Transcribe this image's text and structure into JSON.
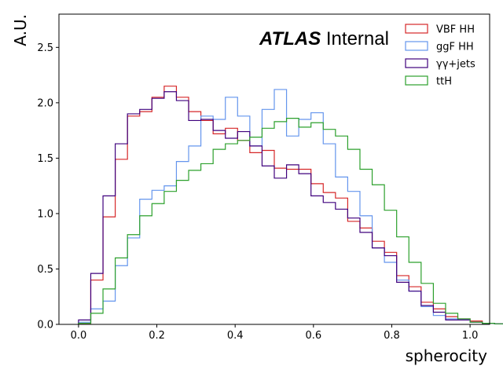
{
  "chart_data": {
    "type": "histogram",
    "xlabel": "spherocity",
    "ylabel": "A.U.",
    "xlim": [
      -0.05,
      1.05
    ],
    "ylim": [
      0,
      2.8
    ],
    "xticks": [
      "0.0",
      "0.2",
      "0.4",
      "0.6",
      "0.8",
      "1.0"
    ],
    "yticks": [
      "0.0",
      "0.5",
      "1.0",
      "1.5",
      "2.0",
      "2.5"
    ],
    "bin_edges_start": 0.0,
    "bin_width": 0.03125,
    "legend_position": "top-right",
    "grid": false,
    "annotation": {
      "bold": "ATLAS",
      "rest": " Internal"
    },
    "series": [
      {
        "name": "VBF HH",
        "color": "#d62728",
        "values": [
          0.01,
          0.4,
          0.97,
          1.49,
          1.88,
          1.92,
          2.05,
          2.15,
          2.05,
          1.92,
          1.84,
          1.72,
          1.77,
          1.66,
          1.55,
          1.57,
          1.41,
          1.4,
          1.4,
          1.27,
          1.19,
          1.14,
          0.93,
          0.87,
          0.75,
          0.65,
          0.44,
          0.34,
          0.2,
          0.14,
          0.07,
          0.05,
          0.03,
          0.01,
          0.005,
          0.0
        ]
      },
      {
        "name": "ggF HH",
        "color": "#6495ed",
        "values": [
          0.02,
          0.14,
          0.21,
          0.53,
          0.78,
          1.13,
          1.21,
          1.25,
          1.47,
          1.61,
          1.88,
          1.85,
          2.05,
          1.88,
          1.61,
          1.94,
          2.12,
          1.7,
          1.85,
          1.91,
          1.63,
          1.33,
          1.2,
          0.98,
          0.69,
          0.56,
          0.4,
          0.3,
          0.16,
          0.08,
          0.05,
          0.04,
          0.02,
          0.01,
          0.005,
          0.0
        ]
      },
      {
        "name": "γγ+jets",
        "color": "#3f007d",
        "values": [
          0.04,
          0.46,
          1.16,
          1.63,
          1.9,
          1.94,
          2.04,
          2.1,
          2.02,
          1.84,
          1.85,
          1.75,
          1.68,
          1.74,
          1.61,
          1.43,
          1.32,
          1.44,
          1.36,
          1.16,
          1.1,
          1.04,
          0.96,
          0.83,
          0.69,
          0.62,
          0.38,
          0.3,
          0.17,
          0.11,
          0.04,
          0.04,
          0.02,
          0.01,
          0.005,
          0.0
        ]
      },
      {
        "name": "ttH",
        "color": "#2ca02c",
        "values": [
          0.01,
          0.1,
          0.32,
          0.6,
          0.81,
          0.98,
          1.09,
          1.2,
          1.3,
          1.39,
          1.45,
          1.58,
          1.63,
          1.66,
          1.69,
          1.77,
          1.83,
          1.86,
          1.78,
          1.82,
          1.76,
          1.7,
          1.58,
          1.4,
          1.26,
          1.03,
          0.79,
          0.56,
          0.37,
          0.19,
          0.1,
          0.05,
          0.02,
          0.01,
          0.005,
          0.0
        ]
      }
    ]
  }
}
